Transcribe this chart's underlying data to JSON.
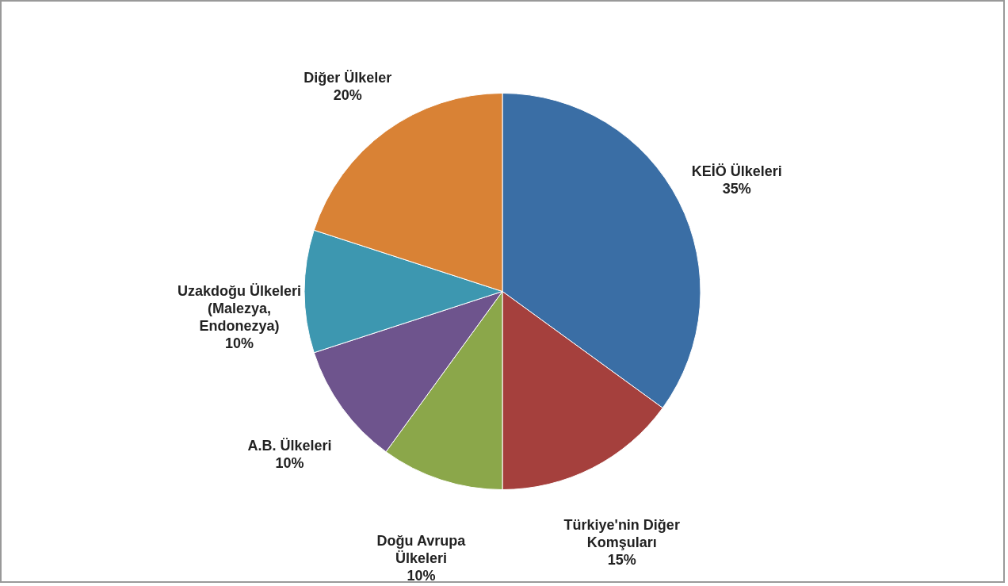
{
  "chart_data": {
    "type": "pie",
    "categories": [
      "KEİÖ Ülkeleri",
      "Türkiye'nin Diğer Komşuları",
      "Doğu Avrupa Ülkeleri",
      "A.B. Ülkeleri",
      "Uzakdoğu Ülkeleri (Malezya, Endonezya)",
      "Diğer Ülkeler"
    ],
    "values": [
      35,
      15,
      10,
      10,
      10,
      20
    ],
    "value_labels": [
      "35%",
      "15%",
      "10%",
      "10%",
      "10%",
      "20%"
    ],
    "colors": [
      "#3a6ea5",
      "#a5403d",
      "#8ba74a",
      "#6e548d",
      "#3d97b0",
      "#d98235"
    ]
  }
}
